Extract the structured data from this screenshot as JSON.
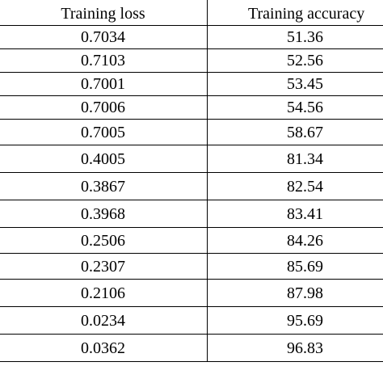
{
  "table": {
    "headers": {
      "loss": "Training loss",
      "accuracy": "Training accuracy"
    },
    "rows": [
      {
        "loss": "0.7034",
        "accuracy": "51.36"
      },
      {
        "loss": "0.7103",
        "accuracy": "52.56"
      },
      {
        "loss": "0.7001",
        "accuracy": "53.45"
      },
      {
        "loss": "0.7006",
        "accuracy": "54.56"
      },
      {
        "loss": "0.7005",
        "accuracy": "58.67"
      },
      {
        "loss": "0.4005",
        "accuracy": "81.34"
      },
      {
        "loss": "0.3867",
        "accuracy": "82.54"
      },
      {
        "loss": "0.3968",
        "accuracy": "83.41"
      },
      {
        "loss": "0.2506",
        "accuracy": "84.26"
      },
      {
        "loss": "0.2307",
        "accuracy": "85.69"
      },
      {
        "loss": "0.2106",
        "accuracy": "87.98"
      },
      {
        "loss": "0.0234",
        "accuracy": "95.69"
      },
      {
        "loss": "0.0362",
        "accuracy": "96.83"
      }
    ]
  }
}
